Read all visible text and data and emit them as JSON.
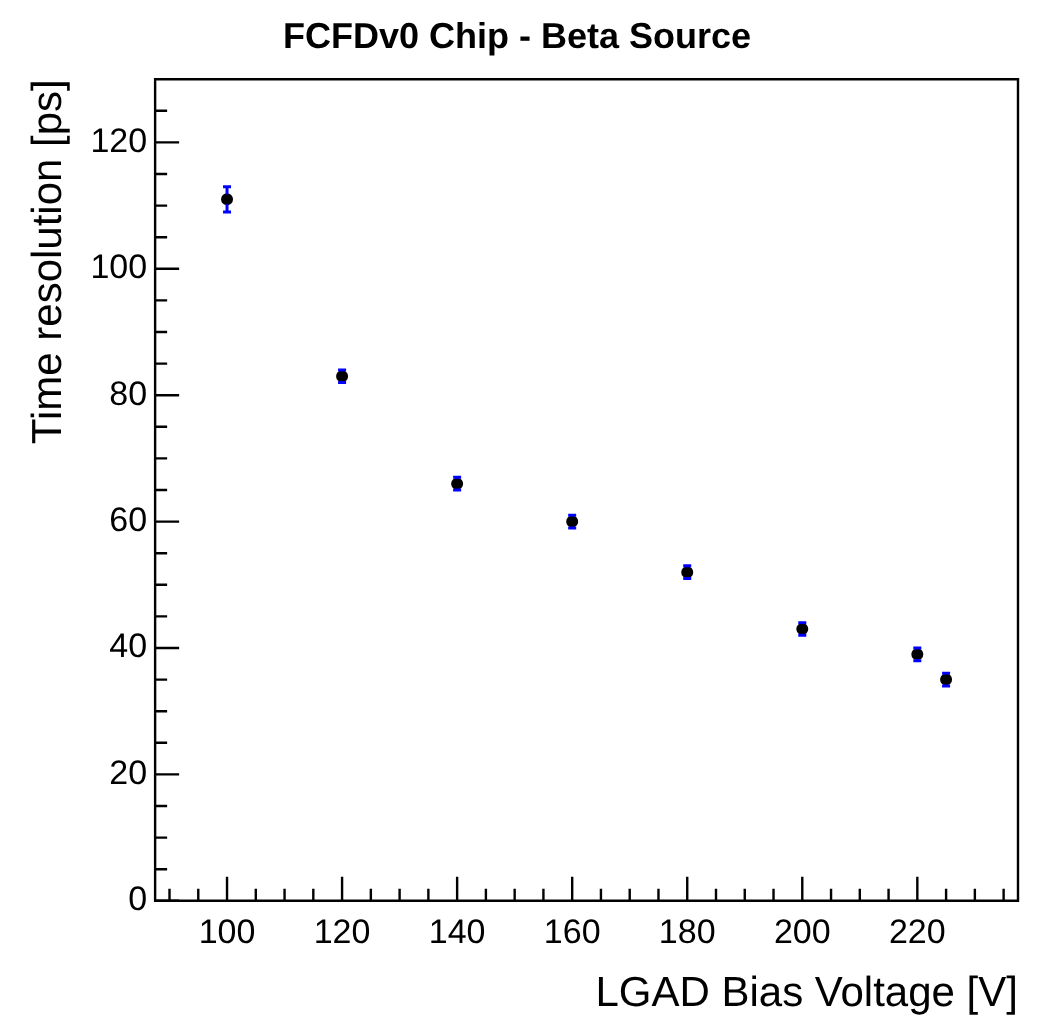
{
  "chart_data": {
    "type": "scatter",
    "title": "FCFDv0 Chip - Beta Source",
    "xlabel": "LGAD Bias Voltage [V]",
    "ylabel": "Time resolution [ps]",
    "x": [
      100,
      120,
      140,
      160,
      180,
      200,
      220,
      225
    ],
    "series": [
      {
        "color": "#000000",
        "values": [
          111,
          83,
          66,
          60,
          52,
          43,
          39,
          35
        ],
        "errors": [
          2,
          1,
          1,
          1,
          1,
          1,
          1,
          1
        ]
      }
    ],
    "marker": "circle",
    "legend": false,
    "grid": false,
    "xlim": [
      87.5,
      237.5
    ],
    "xticks": [
      {
        "value": 90,
        "label": null
      },
      {
        "value": 95,
        "label": null
      },
      100,
      {
        "value": 105,
        "label": null
      },
      {
        "value": 110,
        "label": null
      },
      {
        "value": 115,
        "label": null
      },
      120,
      {
        "value": 125,
        "label": null
      },
      {
        "value": 130,
        "label": null
      },
      {
        "value": 135,
        "label": null
      },
      140,
      {
        "value": 145,
        "label": null
      },
      {
        "value": 150,
        "label": null
      },
      {
        "value": 155,
        "label": null
      },
      160,
      {
        "value": 165,
        "label": null
      },
      {
        "value": 170,
        "label": null
      },
      {
        "value": 175,
        "label": null
      },
      180,
      {
        "value": 185,
        "label": null
      },
      {
        "value": 190,
        "label": null
      },
      {
        "value": 195,
        "label": null
      },
      200,
      {
        "value": 205,
        "label": null
      },
      {
        "value": 210,
        "label": null
      },
      {
        "value": 215,
        "label": null
      },
      220,
      {
        "value": 225,
        "label": null
      },
      {
        "value": 230,
        "label": null
      },
      {
        "value": 235,
        "label": null
      }
    ],
    "ylim": [
      0,
      130
    ],
    "yticks": [
      0,
      {
        "value": 5,
        "label": null
      },
      {
        "value": 10,
        "label": null
      },
      {
        "value": 15,
        "label": null
      },
      20,
      {
        "value": 25,
        "label": null
      },
      {
        "value": 30,
        "label": null
      },
      {
        "value": 35,
        "label": null
      },
      40,
      {
        "value": 45,
        "label": null
      },
      {
        "value": 50,
        "label": null
      },
      {
        "value": 55,
        "label": null
      },
      60,
      {
        "value": 65,
        "label": null
      },
      {
        "value": 70,
        "label": null
      },
      {
        "value": 75,
        "label": null
      },
      80,
      {
        "value": 85,
        "label": null
      },
      {
        "value": 90,
        "label": null
      },
      {
        "value": 95,
        "label": null
      },
      100,
      {
        "value": 105,
        "label": null
      },
      {
        "value": 110,
        "label": null
      },
      {
        "value": 115,
        "label": null
      },
      120,
      {
        "value": 125,
        "label": null
      }
    ]
  }
}
